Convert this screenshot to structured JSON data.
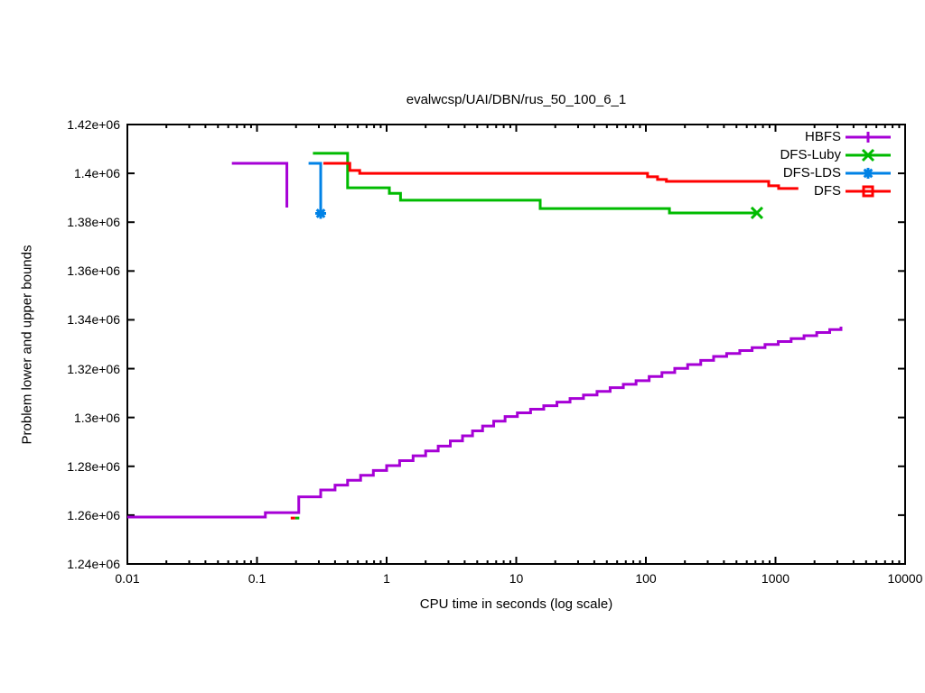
{
  "page": {
    "background": "#ffffff"
  },
  "chart_data": {
    "type": "line",
    "title": "evalwcsp/UAI/DBN/rus_50_100_6_1",
    "xlabel": "CPU time in seconds (log scale)",
    "ylabel": "Problem lower and upper bounds",
    "x_scale": "log",
    "grid": false,
    "xlim": [
      0.01,
      10000
    ],
    "ylim": [
      1240000,
      1420000
    ],
    "x_ticks": [
      0.01,
      0.1,
      1,
      10,
      100,
      1000,
      10000
    ],
    "x_tick_labels": [
      "0.01",
      "0.1",
      "1",
      "10",
      "100",
      "1000",
      "10000"
    ],
    "y_ticks": [
      1240000,
      1260000,
      1280000,
      1300000,
      1320000,
      1340000,
      1360000,
      1380000,
      1400000,
      1420000
    ],
    "y_tick_labels": [
      "1.24e+06",
      "1.26e+06",
      "1.28e+06",
      "1.3e+06",
      "1.32e+06",
      "1.34e+06",
      "1.36e+06",
      "1.38e+06",
      "1.4e+06",
      "1.42e+06"
    ],
    "legend_position": "top-right-inside",
    "legend": [
      {
        "label": "HBFS",
        "color": "#A600D6",
        "marker": "plus"
      },
      {
        "label": "DFS-Luby",
        "color": "#00BB00",
        "marker": "cross"
      },
      {
        "label": "DFS-LDS",
        "color": "#0082E6",
        "marker": "asterisk"
      },
      {
        "label": "DFS",
        "color": "#FF0000",
        "marker": "square"
      }
    ],
    "series": [
      {
        "name": "hbfs-upper-bound",
        "legend": "HBFS",
        "color": "#A600D6",
        "marker": null,
        "points": [
          [
            0.064,
            1404100
          ],
          [
            0.17,
            1386000
          ]
        ]
      },
      {
        "name": "hbfs-lower-bound",
        "legend": "HBFS",
        "color": "#A600D6",
        "marker": null,
        "points": [
          [
            0.01,
            1259200
          ],
          [
            0.116,
            1261000
          ],
          [
            0.21,
            1267500
          ],
          [
            0.31,
            1270300
          ],
          [
            0.4,
            1272300
          ],
          [
            0.5,
            1274300
          ],
          [
            0.63,
            1276300
          ],
          [
            0.79,
            1278300
          ],
          [
            1.0,
            1280300
          ],
          [
            1.26,
            1282300
          ],
          [
            1.6,
            1284300
          ],
          [
            2.0,
            1286300
          ],
          [
            2.5,
            1288300
          ],
          [
            3.1,
            1290400
          ],
          [
            3.85,
            1292500
          ],
          [
            4.6,
            1294500
          ],
          [
            5.5,
            1296500
          ],
          [
            6.7,
            1298500
          ],
          [
            8.2,
            1300400
          ],
          [
            10.2,
            1301900
          ],
          [
            12.9,
            1303400
          ],
          [
            16.3,
            1304800
          ],
          [
            20.6,
            1306300
          ],
          [
            26,
            1307800
          ],
          [
            33,
            1309200
          ],
          [
            42,
            1310700
          ],
          [
            53,
            1312200
          ],
          [
            67,
            1313600
          ],
          [
            84,
            1315100
          ],
          [
            106,
            1316800
          ],
          [
            133,
            1318400
          ],
          [
            167,
            1320100
          ],
          [
            210,
            1321700
          ],
          [
            265,
            1323400
          ],
          [
            333,
            1325000
          ],
          [
            420,
            1326200
          ],
          [
            530,
            1327400
          ],
          [
            660,
            1328600
          ],
          [
            830,
            1329900
          ],
          [
            1050,
            1331100
          ],
          [
            1320,
            1332300
          ],
          [
            1660,
            1333500
          ],
          [
            2080,
            1334800
          ],
          [
            2620,
            1336000
          ],
          [
            3200,
            1337200
          ]
        ]
      },
      {
        "name": "dfs-luby-upper-bound",
        "legend": "DFS-Luby",
        "color": "#00BB00",
        "marker": "cross",
        "points": [
          [
            0.27,
            1408200
          ],
          [
            0.5,
            1394100
          ],
          [
            1.05,
            1391800
          ],
          [
            1.28,
            1389000
          ],
          [
            15.3,
            1385600
          ],
          [
            152,
            1383800
          ],
          [
            719,
            1383800
          ]
        ]
      },
      {
        "name": "dfs-luby-lower-bound",
        "legend": "DFS-Luby",
        "color": "#00BB00",
        "marker": null,
        "points": [
          [
            0.197,
            1258800
          ],
          [
            0.212,
            1258800
          ]
        ]
      },
      {
        "name": "dfs-lds-upper-bound",
        "legend": "DFS-LDS",
        "color": "#0082E6",
        "marker": "asterisk",
        "points": [
          [
            0.25,
            1404100
          ],
          [
            0.31,
            1383600
          ]
        ]
      },
      {
        "name": "dfs-upper-bound",
        "legend": "DFS",
        "color": "#FF0000",
        "marker": null,
        "points": [
          [
            0.325,
            1404100
          ],
          [
            0.52,
            1401200
          ],
          [
            0.62,
            1400000
          ],
          [
            103,
            1398600
          ],
          [
            123,
            1397500
          ],
          [
            144,
            1396700
          ],
          [
            886,
            1394900
          ],
          [
            1057,
            1393800
          ],
          [
            1500,
            1393800
          ]
        ]
      },
      {
        "name": "dfs-lower-bound",
        "legend": "DFS",
        "color": "#FF0000",
        "marker": null,
        "points": [
          [
            0.182,
            1258800
          ],
          [
            0.197,
            1258800
          ]
        ]
      }
    ]
  }
}
